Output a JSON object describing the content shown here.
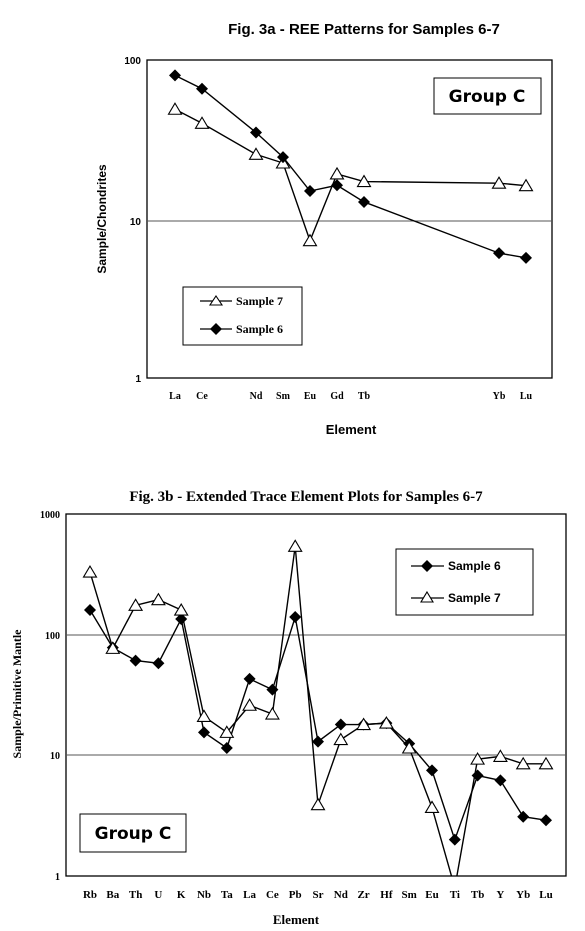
{
  "chart_data": [
    {
      "type": "line",
      "title": "Fig. 3a -  REE Patterns for Samples 6-7",
      "xlabel": "Element",
      "ylabel": "Sample/Chondrites",
      "yscale": "log",
      "ylim": [
        1,
        100
      ],
      "ytick_labels": [
        "1",
        "10",
        "100"
      ],
      "grid": "horizontal line at 10",
      "annotation": "Group C",
      "legend_position": "bottom-left",
      "categories": [
        "La",
        "Ce",
        "Nd",
        "Sm",
        "Eu",
        "Gd",
        "Tb",
        "Yb",
        "Lu"
      ],
      "category_slots": [
        0,
        1,
        3,
        4,
        5,
        6,
        7,
        12,
        13
      ],
      "series": [
        {
          "name": "Sample 7",
          "marker": "open-triangle",
          "values": [
            49,
            40,
            25.5,
            22.5,
            7.3,
            19.2,
            17.2,
            16.8,
            16.2
          ]
        },
        {
          "name": "Sample 6",
          "marker": "filled-diamond",
          "values": [
            80,
            66,
            35,
            24.5,
            15,
            16.3,
            12.8,
            6.1,
            5.7
          ]
        }
      ]
    },
    {
      "type": "line",
      "title": "Fig. 3b -  Extended Trace Element Plots for Samples 6-7",
      "xlabel": "Element",
      "ylabel": "Sample/Primitive Mantle",
      "yscale": "log",
      "ylim": [
        1,
        1000
      ],
      "ytick_labels": [
        "1",
        "10",
        "100",
        "1000"
      ],
      "grid": "horizontal lines at 10 and 100",
      "annotation": "Group C",
      "legend_position": "top-right",
      "categories": [
        "Rb",
        "Ba",
        "Th",
        "U",
        "K",
        "Nb",
        "Ta",
        "La",
        "Ce",
        "Pb",
        "Sr",
        "Nd",
        "Zr",
        "Hf",
        "Sm",
        "Eu",
        "Ti",
        "Tb",
        "Y",
        "Yb",
        "Lu"
      ],
      "series": [
        {
          "name": "Sample 6",
          "marker": "filled-diamond",
          "values": [
            160,
            78,
            61,
            58,
            135,
            15.5,
            11.5,
            43,
            35,
            140,
            13,
            18,
            18,
            18.5,
            12.5,
            7.5,
            2,
            6.8,
            6.2,
            3.1,
            2.9
          ]
        },
        {
          "name": "Sample 7",
          "marker": "open-triangle",
          "values": [
            330,
            77,
            175,
            195,
            160,
            21,
            15.5,
            26,
            22,
            540,
            3.9,
            13.5,
            18,
            18.5,
            11.5,
            3.7,
            0.8,
            9.3,
            9.8,
            8.5,
            8.5
          ]
        }
      ]
    }
  ]
}
